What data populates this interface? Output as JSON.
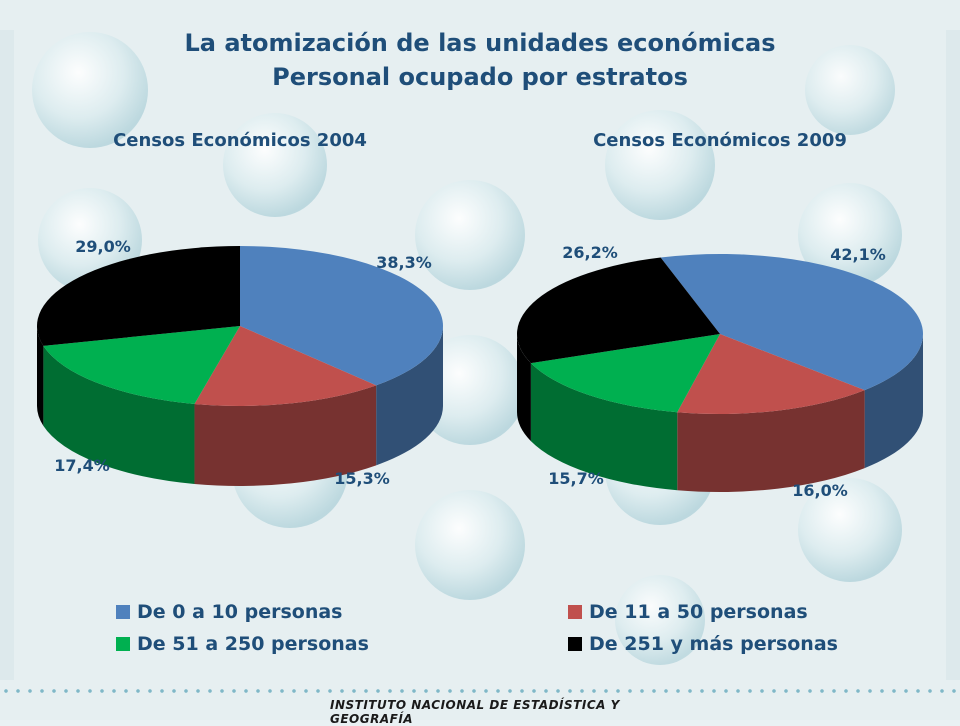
{
  "title_line1": "La atomización de las unidades económicas",
  "title_line2": "Personal ocupado por estratos",
  "footer": "INSTITUTO NACIONAL DE ESTADÍSTICA Y GEOGRAFÍA",
  "colors": {
    "title": "#1f4e79",
    "series": [
      "#4f81bd",
      "#c0504d",
      "#00b050",
      "#000000"
    ]
  },
  "chart_data": [
    {
      "type": "pie",
      "title": "Censos Económicos 2004",
      "categories": [
        "De 0 a 10 personas",
        "De 11 a 50 personas",
        "De 51 a 250 personas",
        "De 251 y más personas"
      ],
      "values": [
        38.3,
        15.3,
        17.4,
        29.0
      ],
      "labels": [
        "38,3%",
        "15,3%",
        "17,4%",
        "29,0%"
      ],
      "legend": "bottom"
    },
    {
      "type": "pie",
      "title": "Censos Económicos 2009",
      "categories": [
        "De 0 a 10 personas",
        "De 11 a 50 personas",
        "De 51 a 250 personas",
        "De 251 y más personas"
      ],
      "values": [
        42.1,
        16.0,
        15.7,
        26.2
      ],
      "labels": [
        "42,1%",
        "16,0%",
        "15,7%",
        "26,2%"
      ],
      "legend": "bottom"
    }
  ]
}
